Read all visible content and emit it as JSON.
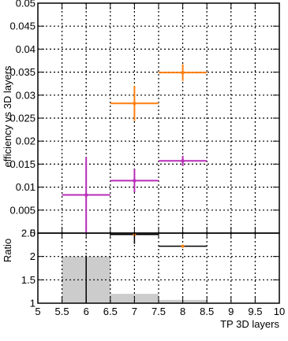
{
  "chart_data": [
    {
      "type": "scatter",
      "panel": "main",
      "title": "",
      "xlabel": "",
      "ylabel": "efficiency vs 3D layers",
      "xlim": [
        5,
        10
      ],
      "ylim": [
        0,
        0.05
      ],
      "grid": true,
      "y_ticks": [
        "0",
        "0.005",
        "0.01",
        "0.015",
        "0.02",
        "0.025",
        "0.03",
        "0.035",
        "0.04",
        "0.045",
        "0.05"
      ],
      "series": [
        {
          "color": "#ff7f0e",
          "points": [
            {
              "x": 7,
              "xerr": 0.5,
              "y": 0.0282,
              "yerr": 0.0038
            },
            {
              "x": 8,
              "xerr": 0.5,
              "y": 0.0349,
              "yerr": 0.0018
            }
          ]
        },
        {
          "color": "#b82db8",
          "points": [
            {
              "x": 6,
              "xerr": 0.5,
              "y": 0.0083,
              "yerr": 0.0082
            },
            {
              "x": 7,
              "xerr": 0.5,
              "y": 0.0114,
              "yerr": 0.0025
            },
            {
              "x": 8,
              "xerr": 0.5,
              "y": 0.0157,
              "yerr": 0.0011
            }
          ]
        }
      ]
    },
    {
      "type": "scatter",
      "panel": "ratio",
      "title": "",
      "xlabel": "TP 3D layers",
      "ylabel": "Ratio",
      "xlim": [
        5,
        10
      ],
      "ylim": [
        1,
        2.5
      ],
      "grid": true,
      "x_ticks": [
        "5",
        "5.5",
        "6",
        "6.5",
        "7",
        "7.5",
        "8",
        "8.5",
        "9",
        "9.5",
        "10"
      ],
      "y_ticks": [
        "1",
        "1.5",
        "2",
        "2.5"
      ],
      "ratio_points": [
        {
          "x": 7,
          "xerr": 0.5,
          "y": 2.47,
          "yerr": 0.2,
          "color": "#000000"
        },
        {
          "x": 8,
          "xerr": 0.5,
          "y": 2.22,
          "yerr": 0.02,
          "color": "#000000"
        }
      ],
      "band_color": "#cccccc",
      "band": [
        {
          "x0": 5.5,
          "x1": 6.5,
          "y": 2.0
        },
        {
          "x0": 6.5,
          "x1": 7.5,
          "y": 1.2
        },
        {
          "x0": 7.5,
          "x1": 8.5,
          "y": 1.07
        }
      ],
      "error_lines": [
        {
          "x": 6,
          "y0": 1,
          "y1": 2.02
        }
      ]
    }
  ]
}
